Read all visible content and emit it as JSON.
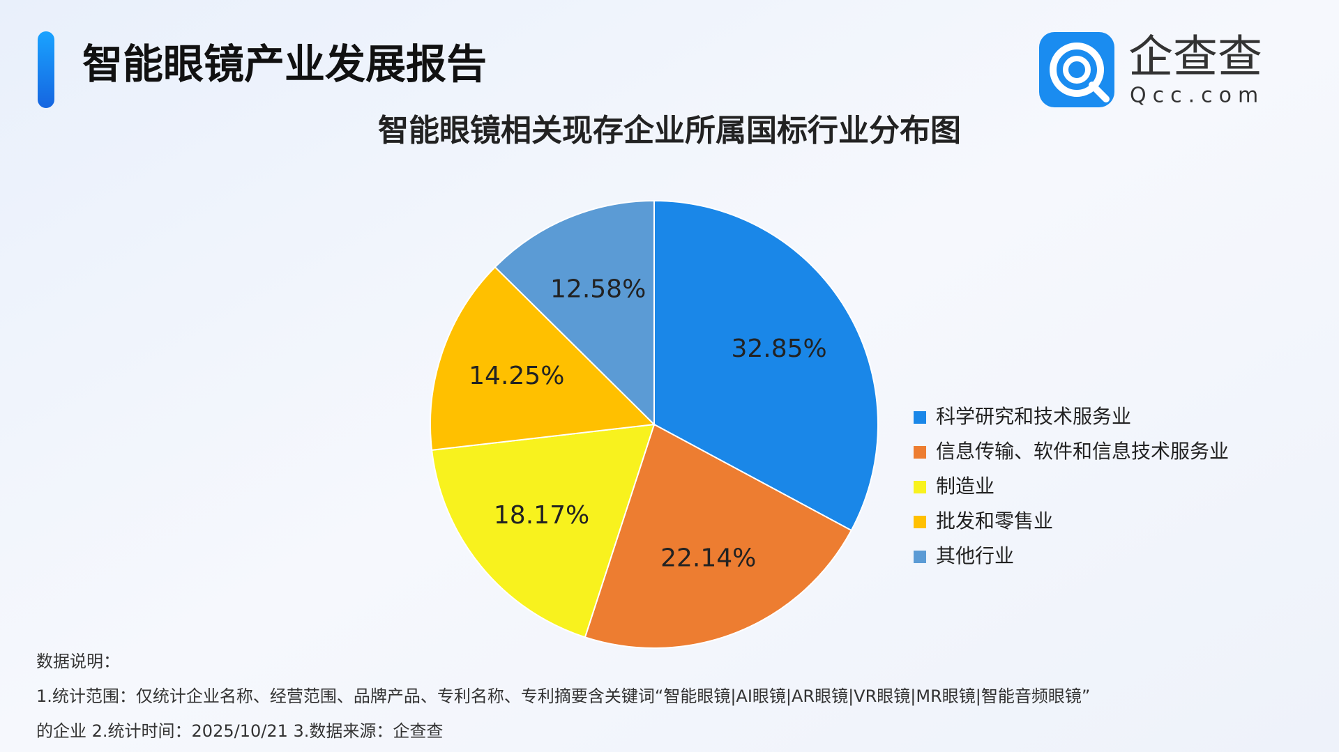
{
  "header": {
    "title": "智能眼镜产业发展报告"
  },
  "logo": {
    "name": "企查查",
    "domain": "Qcc.com"
  },
  "chart_data": {
    "type": "pie",
    "title": "智能眼镜相关现存企业所属国标行业分布图",
    "categories": [
      "科学研究和技术服务业",
      "信息传输、软件和信息技术服务业",
      "制造业",
      "批发和零售业",
      "其他行业"
    ],
    "values": [
      32.85,
      22.14,
      18.17,
      14.25,
      12.58
    ],
    "value_labels": [
      "32.85%",
      "22.14%",
      "18.17%",
      "14.25%",
      "12.58%"
    ],
    "colors": [
      "#1a87e8",
      "#ed7d31",
      "#f8f21e",
      "#ffc000",
      "#5b9bd5"
    ],
    "legend": "right"
  },
  "notes": {
    "heading": "数据说明：",
    "lines": [
      "1.统计范围：仅统计企业名称、经营范围、品牌产品、专利名称、专利摘要含关键词“智能眼镜|AI眼镜|AR眼镜|VR眼镜|MR眼镜|智能音频眼镜”",
      "的企业 2.统计时间：2025/10/21 3.数据来源：企查查"
    ]
  }
}
